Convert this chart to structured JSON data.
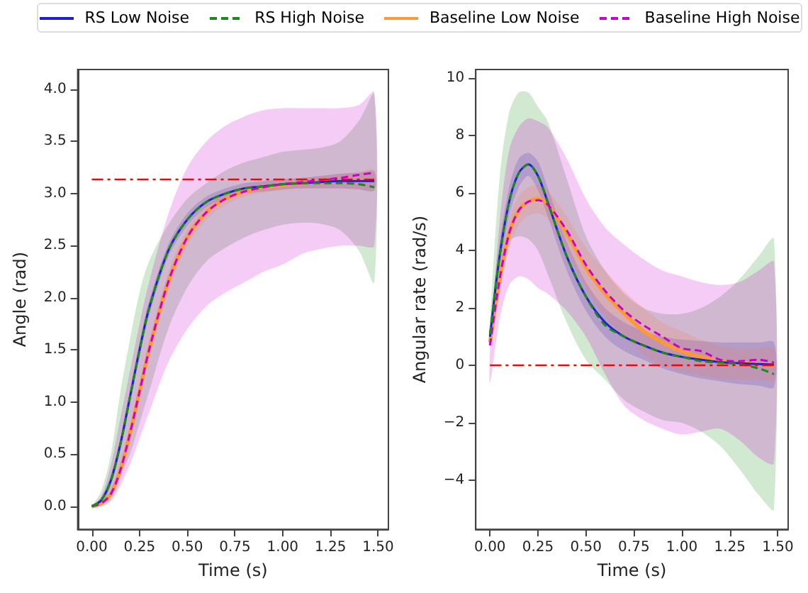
{
  "chart_data": [
    {
      "type": "line",
      "xlabel": "Time (s)",
      "ylabel": "Angle (rad)",
      "legend": "top",
      "grid": false,
      "x": [
        0,
        0.05,
        0.1,
        0.15,
        0.2,
        0.25,
        0.3,
        0.4,
        0.5,
        0.6,
        0.7,
        0.8,
        0.9,
        1.0,
        1.1,
        1.2,
        1.3,
        1.4,
        1.48
      ],
      "xlim": [
        -0.074,
        1.554
      ],
      "xticks": [
        {
          "value": 0,
          "label": "0.00"
        },
        {
          "value": 0.25,
          "label": "0.25"
        },
        {
          "value": 0.5,
          "label": "0.50"
        },
        {
          "value": 0.75,
          "label": "0.75"
        },
        {
          "value": 1,
          "label": "1.00"
        },
        {
          "value": 1.25,
          "label": "1.25"
        },
        {
          "value": 1.5,
          "label": "1.50"
        }
      ],
      "ylim": [
        -0.22,
        4.19
      ],
      "yticks": [
        {
          "value": 0,
          "label": "0.0"
        },
        {
          "value": 0.5,
          "label": "0.5"
        },
        {
          "value": 1,
          "label": "1.0"
        },
        {
          "value": 1.5,
          "label": "1.5"
        },
        {
          "value": 2,
          "label": "2.0"
        },
        {
          "value": 2.5,
          "label": "2.5"
        },
        {
          "value": 3,
          "label": "3.0"
        },
        {
          "value": 3.5,
          "label": "3.5"
        },
        {
          "value": 4,
          "label": "4.0"
        }
      ],
      "ref_lines": [
        {
          "axis": "y",
          "value": 3.14,
          "color": "#ff0000",
          "line_style": "dashdot"
        }
      ],
      "series": [
        {
          "name": "RS Low Noise",
          "color": "#1f1fd0",
          "line_style": "solid",
          "values": [
            0,
            0.06,
            0.25,
            0.6,
            1.05,
            1.5,
            1.9,
            2.45,
            2.75,
            2.92,
            3.0,
            3.05,
            3.07,
            3.09,
            3.1,
            3.11,
            3.12,
            3.12,
            3.12
          ],
          "lower": [
            0,
            0.03,
            0.2,
            0.54,
            0.98,
            1.43,
            1.83,
            2.39,
            2.69,
            2.87,
            2.95,
            3.0,
            3.02,
            3.04,
            3.05,
            3.05,
            3.05,
            3.04,
            3.03
          ],
          "upper": [
            0,
            0.09,
            0.3,
            0.66,
            1.12,
            1.57,
            1.97,
            2.51,
            2.81,
            2.97,
            3.05,
            3.1,
            3.12,
            3.14,
            3.15,
            3.17,
            3.19,
            3.2,
            3.21
          ]
        },
        {
          "name": "RS High Noise",
          "color": "#1a8a1a",
          "line_style": "dashed",
          "values": [
            0,
            0.06,
            0.25,
            0.6,
            1.05,
            1.5,
            1.9,
            2.45,
            2.75,
            2.92,
            3.0,
            3.05,
            3.07,
            3.09,
            3.1,
            3.1,
            3.1,
            3.09,
            3.06
          ],
          "lower": [
            0,
            0.02,
            0.1,
            0.3,
            0.5,
            0.8,
            1.1,
            1.7,
            2.1,
            2.35,
            2.48,
            2.58,
            2.65,
            2.7,
            2.72,
            2.71,
            2.65,
            2.45,
            2.15
          ],
          "upper": [
            0,
            0.15,
            0.5,
            1.1,
            1.6,
            2.05,
            2.35,
            2.7,
            2.95,
            3.1,
            3.22,
            3.3,
            3.35,
            3.4,
            3.42,
            3.44,
            3.5,
            3.7,
            3.95
          ]
        },
        {
          "name": "Baseline Low Noise",
          "color": "#ff9933",
          "line_style": "solid",
          "values": [
            0,
            0.03,
            0.12,
            0.35,
            0.7,
            1.1,
            1.5,
            2.15,
            2.58,
            2.82,
            2.95,
            3.02,
            3.06,
            3.08,
            3.1,
            3.11,
            3.12,
            3.13,
            3.13
          ],
          "lower": [
            0,
            0.01,
            0.07,
            0.28,
            0.62,
            1.01,
            1.41,
            2.06,
            2.5,
            2.75,
            2.89,
            2.97,
            3.01,
            3.03,
            3.05,
            3.05,
            3.05,
            3.04,
            3.03
          ],
          "upper": [
            0,
            0.05,
            0.17,
            0.42,
            0.78,
            1.19,
            1.59,
            2.24,
            2.66,
            2.89,
            3.01,
            3.07,
            3.11,
            3.13,
            3.15,
            3.17,
            3.19,
            3.21,
            3.23
          ]
        },
        {
          "name": "Baseline High Noise",
          "color": "#cc00cc",
          "line_style": "dashed",
          "values": [
            0,
            0.03,
            0.12,
            0.35,
            0.7,
            1.1,
            1.5,
            2.15,
            2.58,
            2.82,
            2.95,
            3.02,
            3.06,
            3.09,
            3.11,
            3.13,
            3.15,
            3.18,
            3.2
          ],
          "lower": [
            0,
            0,
            0.05,
            0.2,
            0.4,
            0.65,
            0.9,
            1.38,
            1.7,
            1.92,
            2.05,
            2.15,
            2.25,
            2.32,
            2.42,
            2.47,
            2.5,
            2.5,
            2.5
          ],
          "upper": [
            0,
            0.1,
            0.4,
            0.85,
            1.3,
            1.75,
            2.15,
            2.8,
            3.25,
            3.5,
            3.65,
            3.74,
            3.8,
            3.82,
            3.82,
            3.82,
            3.82,
            3.85,
            3.97
          ]
        }
      ]
    },
    {
      "type": "line",
      "xlabel": "Time (s)",
      "ylabel": "Angular rate (rad/s)",
      "grid": false,
      "x": [
        0,
        0.05,
        0.1,
        0.15,
        0.2,
        0.25,
        0.3,
        0.4,
        0.5,
        0.6,
        0.7,
        0.8,
        0.9,
        1.0,
        1.1,
        1.2,
        1.3,
        1.4,
        1.48
      ],
      "xlim": [
        -0.074,
        1.554
      ],
      "xticks": [
        {
          "value": 0,
          "label": "0.00"
        },
        {
          "value": 0.25,
          "label": "0.25"
        },
        {
          "value": 0.5,
          "label": "0.50"
        },
        {
          "value": 0.75,
          "label": "0.75"
        },
        {
          "value": 1,
          "label": "1.00"
        },
        {
          "value": 1.25,
          "label": "1.25"
        },
        {
          "value": 1.5,
          "label": "1.50"
        }
      ],
      "ylim": [
        -5.7,
        10.3
      ],
      "yticks": [
        {
          "value": -4,
          "label": "−4"
        },
        {
          "value": -2,
          "label": "−2"
        },
        0,
        2,
        4,
        6,
        8,
        10
      ],
      "ref_lines": [
        {
          "axis": "y",
          "value": 0,
          "color": "#ff0000",
          "line_style": "dashdot"
        }
      ],
      "series": [
        {
          "color": "#1f1fd0",
          "line_style": "solid",
          "values": [
            1.0,
            3.8,
            5.7,
            6.7,
            7.0,
            6.6,
            5.7,
            3.8,
            2.4,
            1.5,
            1.0,
            0.7,
            0.45,
            0.3,
            0.2,
            0.12,
            0.08,
            0.05,
            0.03
          ],
          "lower": [
            0.7,
            3.3,
            5.2,
            6.2,
            6.6,
            6.1,
            5.2,
            3.3,
            1.9,
            1.0,
            0.5,
            0.2,
            -0.1,
            -0.3,
            -0.45,
            -0.55,
            -0.65,
            -0.7,
            -0.75
          ],
          "upper": [
            1.3,
            4.3,
            6.2,
            7.2,
            7.4,
            7.1,
            6.2,
            4.3,
            2.9,
            2.0,
            1.5,
            1.2,
            1.0,
            0.9,
            0.85,
            0.8,
            0.8,
            0.8,
            0.8
          ]
        },
        {
          "color": "#1a8a1a",
          "line_style": "dashed",
          "values": [
            1.1,
            3.8,
            5.7,
            6.7,
            7.0,
            6.6,
            5.7,
            3.8,
            2.4,
            1.4,
            1.0,
            0.7,
            0.45,
            0.3,
            0.15,
            0.1,
            0.05,
            -0.1,
            -0.3
          ],
          "lower": [
            0.9,
            2.5,
            4.3,
            4.5,
            4.4,
            4.0,
            3.2,
            1.5,
            0.2,
            -0.5,
            -1.2,
            -1.6,
            -1.9,
            -2.0,
            -2.3,
            -2.8,
            -3.6,
            -4.5,
            -5.0
          ],
          "upper": [
            1.5,
            6.5,
            8.8,
            9.5,
            9.5,
            9.0,
            8.5,
            6.5,
            4.5,
            3.3,
            2.5,
            2.0,
            1.8,
            1.8,
            2.0,
            2.4,
            3.0,
            3.8,
            4.4
          ]
        },
        {
          "color": "#ff9933",
          "line_style": "solid",
          "values": [
            0.8,
            3.0,
            4.6,
            5.4,
            5.7,
            5.8,
            5.6,
            4.6,
            3.4,
            2.5,
            1.8,
            1.2,
            0.8,
            0.5,
            0.3,
            0.15,
            0.08,
            0.05,
            0.03
          ],
          "lower": [
            0.6,
            2.6,
            4.1,
            4.9,
            5.2,
            5.3,
            5.1,
            4.0,
            2.7,
            1.7,
            1.0,
            0.4,
            0.0,
            -0.2,
            -0.35,
            -0.45,
            -0.5,
            -0.5,
            -0.5
          ],
          "upper": [
            1.0,
            3.4,
            5.1,
            5.9,
            6.2,
            6.3,
            6.1,
            5.2,
            4.1,
            3.3,
            2.6,
            2.0,
            1.5,
            1.2,
            0.9,
            0.7,
            0.6,
            0.6,
            0.6
          ]
        },
        {
          "color": "#cc00cc",
          "line_style": "dashed",
          "values": [
            0.7,
            3.0,
            4.6,
            5.4,
            5.7,
            5.75,
            5.6,
            4.7,
            3.5,
            2.6,
            1.9,
            1.4,
            1.0,
            0.6,
            0.5,
            0.2,
            0.15,
            0.2,
            0.1
          ],
          "lower": [
            -0.6,
            1.6,
            2.8,
            3.1,
            3.0,
            2.7,
            2.5,
            1.9,
            1.0,
            -0.3,
            -1.4,
            -1.9,
            -2.2,
            -2.4,
            -2.3,
            -2.2,
            -2.6,
            -3.2,
            -3.4
          ],
          "upper": [
            0.5,
            5.0,
            7.5,
            8.3,
            8.6,
            8.5,
            8.3,
            7.2,
            5.8,
            4.8,
            4.2,
            3.7,
            3.3,
            3.1,
            2.9,
            2.8,
            2.9,
            3.3,
            3.6
          ]
        }
      ]
    }
  ]
}
